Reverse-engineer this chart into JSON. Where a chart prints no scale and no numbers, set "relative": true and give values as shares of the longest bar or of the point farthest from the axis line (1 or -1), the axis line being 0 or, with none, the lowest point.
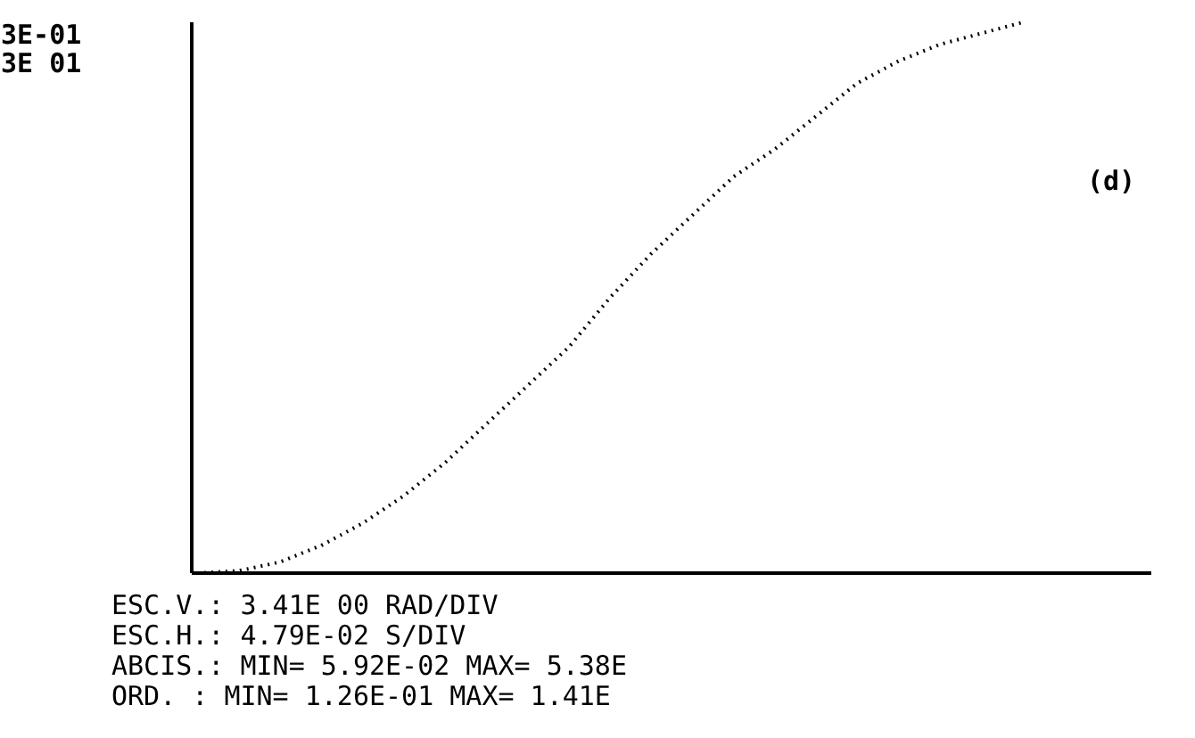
{
  "chart_data": {
    "type": "line",
    "relative": true,
    "line_style": "dotted",
    "marker": "none",
    "grid": false,
    "categories": [
      null,
      null,
      null,
      null,
      null,
      null,
      null,
      null,
      null,
      null,
      null,
      null,
      null,
      null,
      null,
      null,
      null,
      null,
      null,
      null,
      null,
      null,
      null,
      null
    ],
    "series": [
      {
        "color": "#000000",
        "values": [
          0,
          0.004,
          0.02,
          0.05,
          0.09,
          0.14,
          0.2,
          0.27,
          0.34,
          0.41,
          0.5,
          0.58,
          0.65,
          0.72,
          0.77,
          0.83,
          0.89,
          0.93,
          0.96,
          0.98,
          1.0,
          null,
          null,
          null
        ]
      }
    ],
    "annotations": [
      "3E-01",
      "3E 01",
      "(d)",
      "ESC.V.: 3.41E 00 RAD/DIV",
      "ESC.H.: 4.79E-02 S/DIV",
      "ABCIS.: MIN=  5.92E-02 MAX=  5.38E",
      "ORD.   : MIN=  1.26E-01 MAX=  1.41E"
    ]
  }
}
